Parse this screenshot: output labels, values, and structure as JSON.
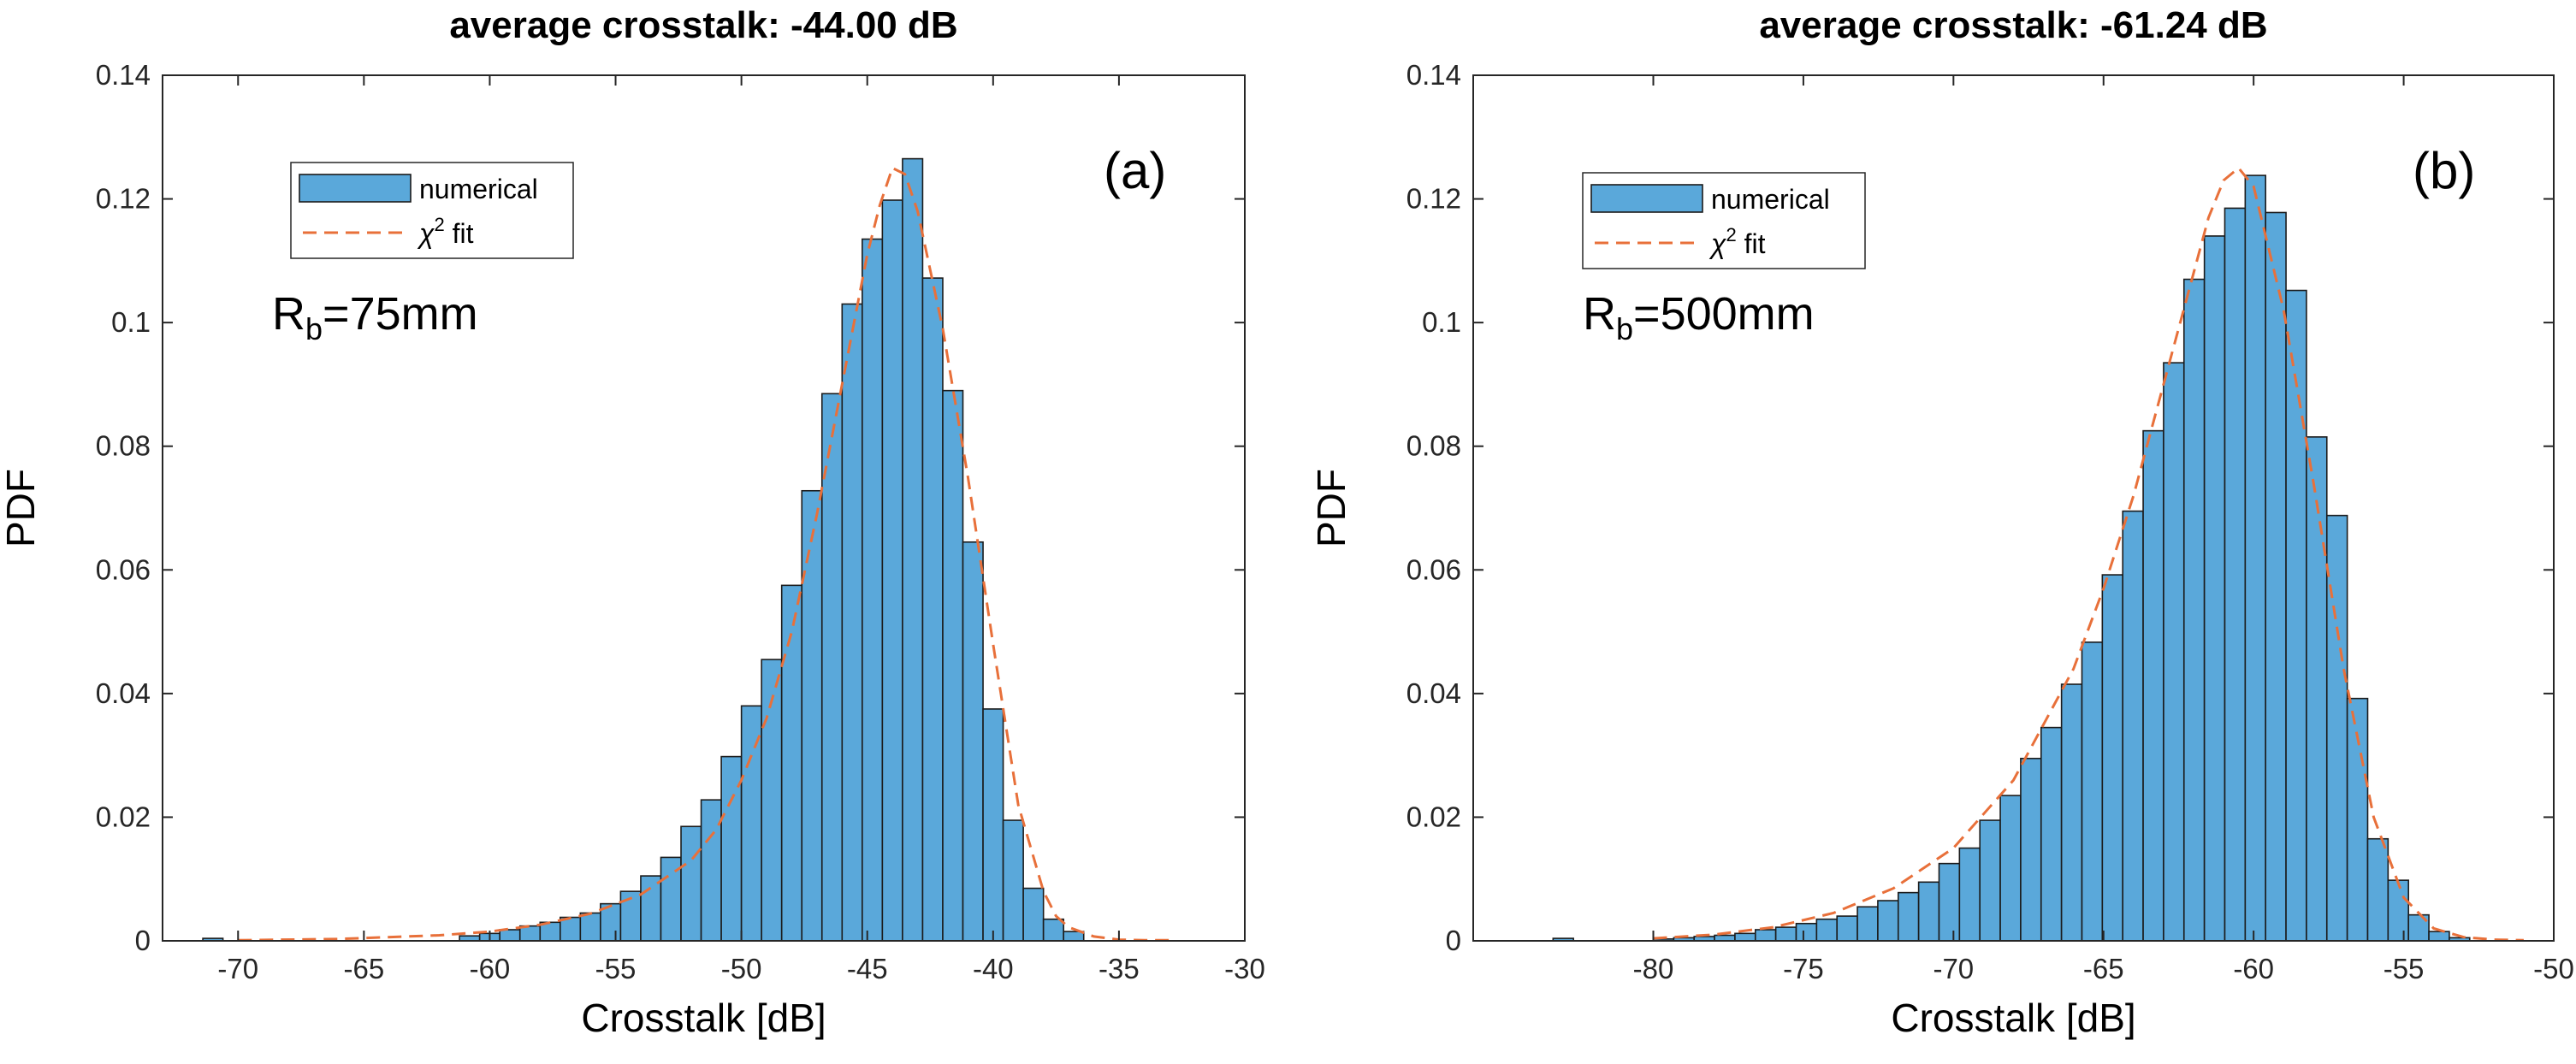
{
  "colors": {
    "bar_fill": "#5aa8da",
    "bar_edge": "#1b1b1b",
    "fit_line": "#e8703a"
  },
  "chart_data": [
    {
      "type": "bar",
      "title": "average crosstalk: -44.00 dB",
      "panel_label": "(a)",
      "annotation": {
        "main": "R",
        "sub": "b",
        "rest": "=75mm"
      },
      "xlabel": "Crosstalk [dB]",
      "ylabel": "PDF",
      "xlim": [
        -73,
        -30
      ],
      "ylim": [
        0,
        0.14
      ],
      "xticks": [
        -70,
        -65,
        -60,
        -55,
        -50,
        -45,
        -40,
        -35,
        -30
      ],
      "xtick_labels": [
        "-70",
        "-65",
        "-60",
        "-55",
        "-50",
        "-45",
        "-40",
        "-35",
        "-30"
      ],
      "yticks": [
        0,
        0.02,
        0.04,
        0.06,
        0.08,
        0.1,
        0.12,
        0.14
      ],
      "ytick_labels": [
        "0",
        "0.02",
        "0.04",
        "0.06",
        "0.08",
        "0.1",
        "0.12",
        "0.14"
      ],
      "legend": {
        "position": "top-left",
        "entries": [
          "numerical",
          "χ² fit"
        ],
        "fit_label_prefix": "χ",
        "fit_label_sup": "2",
        "fit_label_suffix": " fit"
      },
      "bins": {
        "start": -61.2,
        "width": 0.8,
        "values": [
          0.0008,
          0.0012,
          0.0018,
          0.0024,
          0.003,
          0.0038,
          0.0045,
          0.006,
          0.008,
          0.0105,
          0.0135,
          0.0185,
          0.0228,
          0.0298,
          0.038,
          0.0455,
          0.0575,
          0.0728,
          0.0885,
          0.103,
          0.1135,
          0.1198,
          0.1265,
          0.1072,
          0.089,
          0.0645,
          0.0375,
          0.0195,
          0.0085,
          0.0035,
          0.0015
        ]
      },
      "outlier_bins": [
        {
          "x": -71.0,
          "value": 0.0004
        }
      ],
      "fit": {
        "x": [
          -70,
          -66,
          -62,
          -60,
          -58,
          -56,
          -54,
          -52,
          -51,
          -50,
          -49,
          -48,
          -47,
          -46,
          -45,
          -44.5,
          -44,
          -43.5,
          -43,
          -42,
          -41,
          -40,
          -39,
          -38,
          -37.5,
          -37,
          -36,
          -35,
          -34,
          -33
        ],
        "y": [
          0.0001,
          0.0003,
          0.0009,
          0.0015,
          0.0026,
          0.0044,
          0.0075,
          0.013,
          0.018,
          0.026,
          0.036,
          0.05,
          0.069,
          0.09,
          0.111,
          0.119,
          0.125,
          0.124,
          0.118,
          0.099,
          0.075,
          0.048,
          0.022,
          0.008,
          0.004,
          0.0022,
          0.0007,
          0.0002,
          0.0001,
          0.0001
        ]
      }
    },
    {
      "type": "bar",
      "title": "average crosstalk: -61.24 dB",
      "panel_label": "(b)",
      "annotation": {
        "main": "R",
        "sub": "b",
        "rest": "=500mm"
      },
      "xlabel": "Crosstalk [dB]",
      "ylabel": "PDF",
      "xlim": [
        -86,
        -50
      ],
      "ylim": [
        0,
        0.14
      ],
      "xticks": [
        -80,
        -75,
        -70,
        -65,
        -60,
        -55,
        -50
      ],
      "xtick_labels": [
        "-80",
        "-75",
        "-70",
        "-65",
        "-60",
        "-55",
        "-50"
      ],
      "yticks": [
        0,
        0.02,
        0.04,
        0.06,
        0.08,
        0.1,
        0.12,
        0.14
      ],
      "ytick_labels": [
        "0",
        "0.02",
        "0.04",
        "0.06",
        "0.08",
        "0.1",
        "0.12",
        "0.14"
      ],
      "legend": {
        "position": "top-left",
        "entries": [
          "numerical",
          "χ² fit"
        ],
        "fit_label_prefix": "χ",
        "fit_label_sup": "2",
        "fit_label_suffix": " fit"
      },
      "bins": {
        "start": -80.0,
        "width": 0.68,
        "values": [
          0.0003,
          0.0005,
          0.0007,
          0.0009,
          0.0012,
          0.0018,
          0.0022,
          0.0028,
          0.0035,
          0.004,
          0.0055,
          0.0065,
          0.0078,
          0.0095,
          0.0125,
          0.015,
          0.0195,
          0.0235,
          0.0295,
          0.0345,
          0.0415,
          0.0483,
          0.0592,
          0.0695,
          0.0825,
          0.0935,
          0.107,
          0.114,
          0.1185,
          0.1238,
          0.1178,
          0.1052,
          0.0815,
          0.0688,
          0.0392,
          0.0165,
          0.0098,
          0.0042,
          0.0015,
          0.0005
        ]
      },
      "outlier_bins": [
        {
          "x": -83.0,
          "value": 0.0004
        }
      ],
      "fit": {
        "x": [
          -80,
          -78,
          -76,
          -74,
          -72,
          -70,
          -68,
          -66,
          -65,
          -64,
          -63,
          -62,
          -61.5,
          -61,
          -60.5,
          -60,
          -59,
          -58,
          -57,
          -56,
          -55,
          -54,
          -53,
          -52,
          -51
        ],
        "y": [
          0.0004,
          0.001,
          0.0022,
          0.0045,
          0.0085,
          0.015,
          0.026,
          0.044,
          0.057,
          0.072,
          0.09,
          0.108,
          0.117,
          0.123,
          0.125,
          0.122,
          0.102,
          0.074,
          0.044,
          0.02,
          0.007,
          0.002,
          0.0006,
          0.0002,
          0.0001
        ]
      }
    }
  ]
}
